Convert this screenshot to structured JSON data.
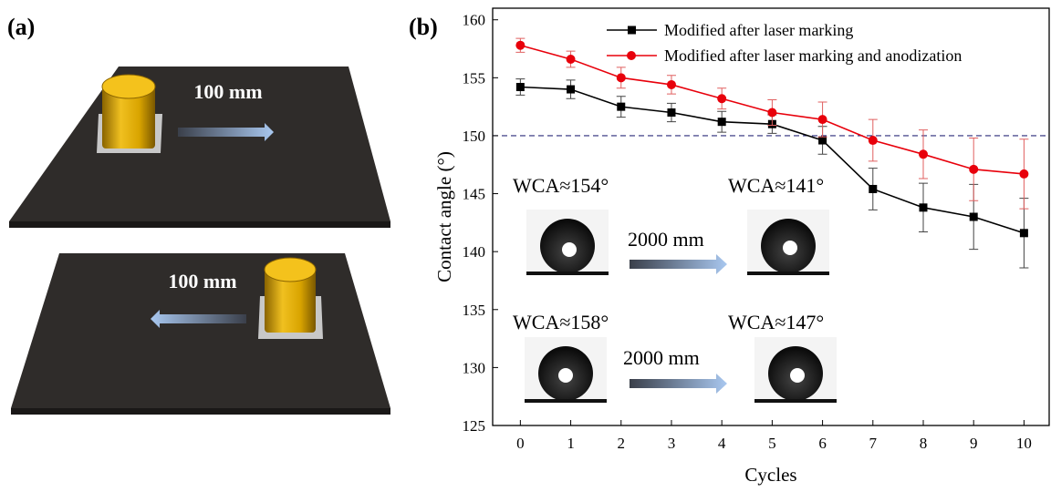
{
  "panel_labels": [
    "(a)",
    "(b)"
  ],
  "illustration": {
    "labels": [
      "100 mm",
      "100 mm"
    ]
  },
  "chart_data": {
    "type": "line",
    "x_label": "Cycles",
    "y_label": "Contact angle (°)",
    "x": [
      0,
      1,
      2,
      3,
      4,
      5,
      6,
      7,
      8,
      9,
      10
    ],
    "series": [
      {
        "name": "Modified after laser marking",
        "color": "#000000",
        "marker": "square",
        "values": [
          154.2,
          154.0,
          152.5,
          152.0,
          151.2,
          151.0,
          149.6,
          145.4,
          143.8,
          143.0,
          141.6
        ],
        "errors": [
          0.7,
          0.8,
          0.9,
          0.8,
          0.9,
          0.8,
          1.2,
          1.8,
          2.1,
          2.8,
          3.0
        ]
      },
      {
        "name": "Modified after laser marking and anodization",
        "color": "#e8000b",
        "marker": "circle",
        "values": [
          157.8,
          156.6,
          155.0,
          154.4,
          153.2,
          152.0,
          151.4,
          149.6,
          148.4,
          147.1,
          146.7
        ],
        "errors": [
          0.6,
          0.7,
          0.9,
          0.8,
          0.9,
          1.1,
          1.5,
          1.8,
          2.1,
          2.7,
          3.0
        ]
      }
    ],
    "hline": 150,
    "xlim": [
      -0.55,
      10.5
    ],
    "ylim": [
      125,
      161
    ],
    "xticks": [
      0,
      1,
      2,
      3,
      4,
      5,
      6,
      7,
      8,
      9,
      10
    ],
    "yticks": [
      125,
      130,
      135,
      140,
      145,
      150,
      155,
      160
    ],
    "annotations": [
      "WCA≈154°",
      "WCA≈141°",
      "2000 mm",
      "WCA≈158°",
      "WCA≈147°",
      "2000 mm"
    ]
  }
}
